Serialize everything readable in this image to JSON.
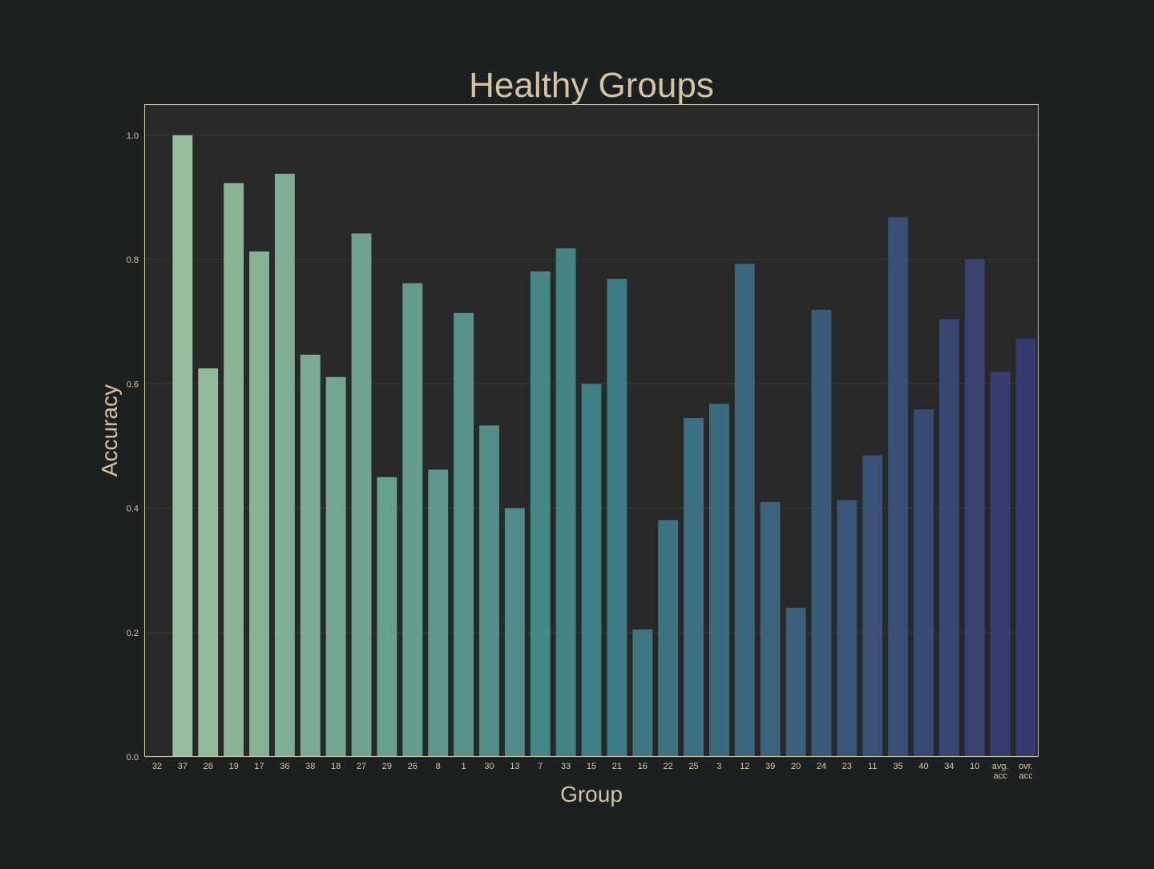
{
  "chart_data": {
    "type": "bar",
    "title": "Healthy Groups",
    "xlabel": "Group",
    "ylabel": "Accuracy",
    "ylim": [
      0,
      1.05
    ],
    "yticks": [
      "0.0",
      "0.2",
      "0.4",
      "0.6",
      "0.8",
      "1.0"
    ],
    "grid": "horizontal",
    "categories": [
      "32",
      "37",
      "28",
      "19",
      "17",
      "36",
      "38",
      "18",
      "27",
      "29",
      "26",
      "8",
      "1",
      "30",
      "13",
      "7",
      "33",
      "15",
      "21",
      "16",
      "22",
      "25",
      "3",
      "12",
      "39",
      "20",
      "24",
      "23",
      "11",
      "35",
      "40",
      "34",
      "10",
      "avg.\nacc",
      "ovr.\nacc"
    ],
    "values": [
      0.0,
      1.0,
      0.625,
      0.923,
      0.813,
      0.938,
      0.647,
      0.611,
      0.842,
      0.45,
      0.762,
      0.462,
      0.714,
      0.533,
      0.4,
      0.781,
      0.818,
      0.6,
      0.769,
      0.205,
      0.381,
      0.545,
      0.568,
      0.793,
      0.41,
      0.24,
      0.719,
      0.413,
      0.485,
      0.868,
      0.559,
      0.704,
      0.8,
      0.619,
      0.673
    ],
    "palette": {
      "start": "#9bc29b",
      "mid": "#3d7f85",
      "end": "#373a6e"
    }
  },
  "theme": {
    "background": "#1d2021",
    "plot_background": "#282828",
    "text_color": "#d5c4a1",
    "grid_color": "#3c3836",
    "frame_color": "#d5c4a1"
  }
}
